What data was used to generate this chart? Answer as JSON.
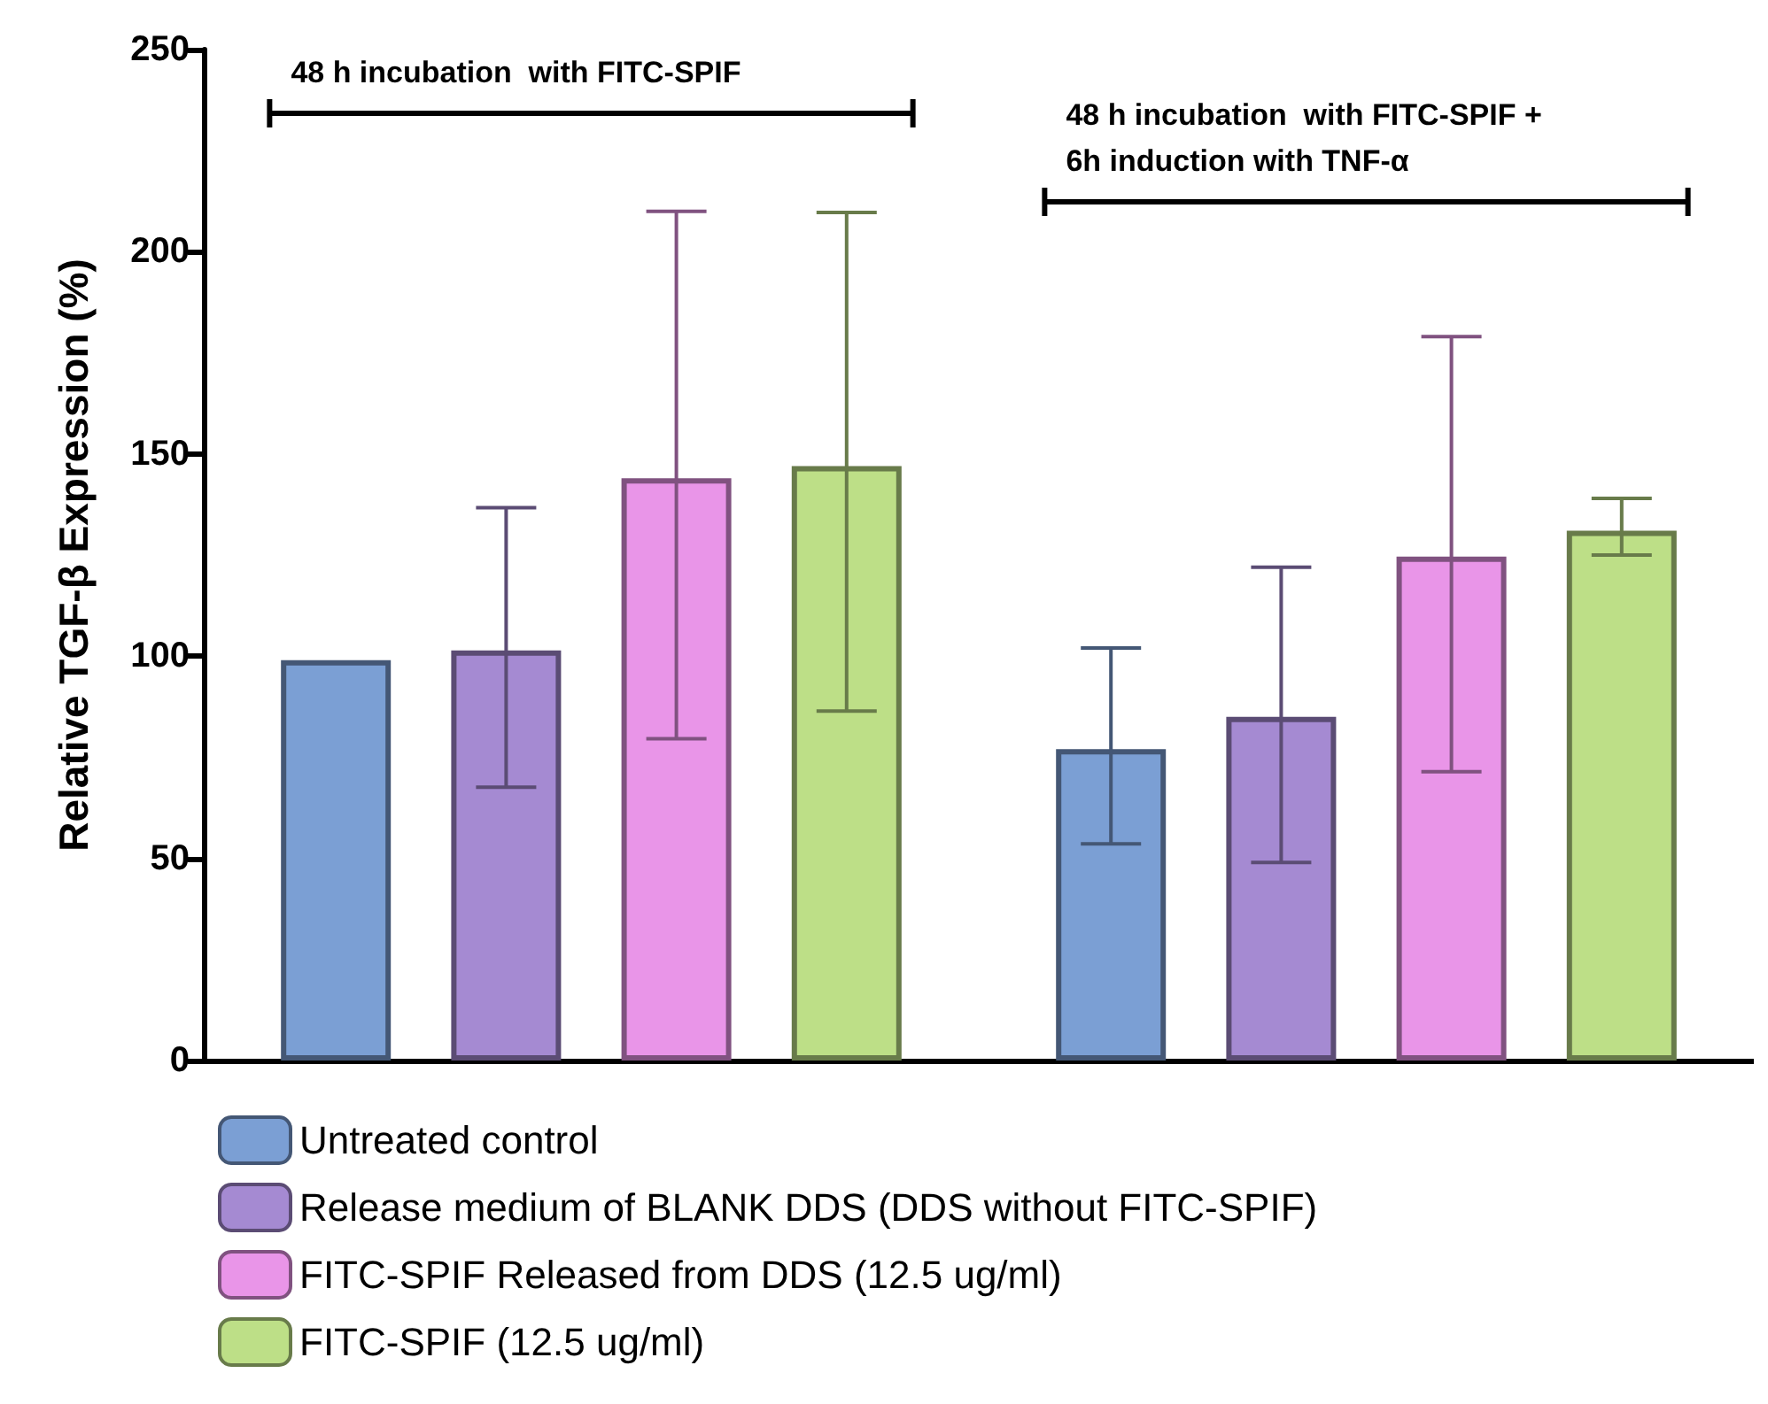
{
  "chart_data": {
    "type": "bar",
    "ylabel": "Relative TGF-β Expression (%)",
    "categories": [
      null,
      null
    ],
    "series": [
      {
        "name": "Untreated control",
        "color": "#7b9fd4",
        "values": [
          99,
          77
        ],
        "errors": [
          null,
          [
            53.6,
            102
          ]
        ]
      },
      {
        "name": "Release medium of BLANK DDS (DDS without FITC-SPIF)",
        "color": "#a58ad2",
        "values": [
          101.4,
          85
        ],
        "errors": [
          [
            67.6,
            136.7
          ],
          [
            49,
            122
          ]
        ]
      },
      {
        "name": "FITC-SPIF Released from DDS (12.5 ug/ml)",
        "color": "#e995e8",
        "values": [
          144,
          124.6
        ],
        "errors": [
          [
            79.6,
            210
          ],
          [
            71.4,
            179
          ]
        ]
      },
      {
        "name": "FITC-SPIF (12.5 ug/ml)",
        "color": "#bddf87",
        "values": [
          147,
          131
        ],
        "errors": [
          [
            86.4,
            209.7
          ],
          [
            125,
            139
          ]
        ]
      }
    ],
    "ylim": [
      0,
      250
    ],
    "yticks": [
      0,
      50,
      100,
      150,
      200,
      250
    ],
    "grid": false,
    "legend": "bottom",
    "annotations": [
      "48 h incubation  with FITC-SPIF",
      "48 h incubation  with FITC-SPIF +\n6h induction with TNF-α"
    ]
  }
}
